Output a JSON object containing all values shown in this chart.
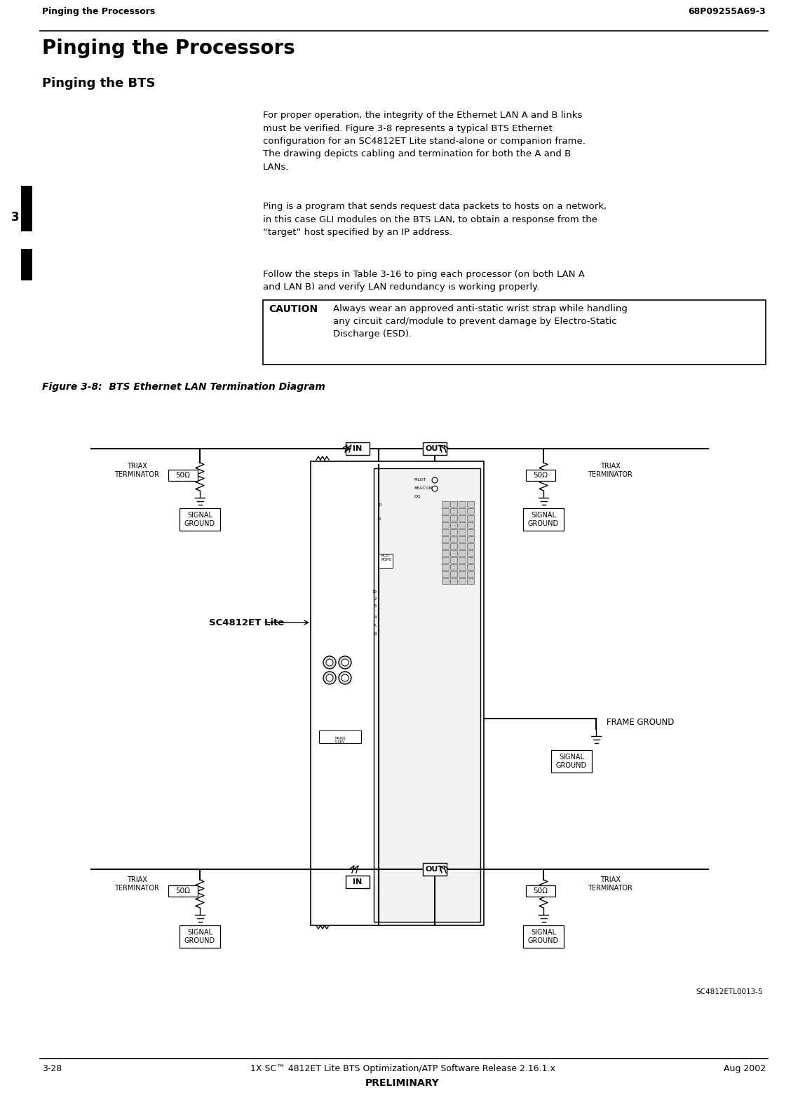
{
  "header_left": "Pinging the Processors",
  "header_right": "68P09255A69-3",
  "title_main": "Pinging the Processors",
  "subtitle": "Pinging the BTS",
  "para1": "For proper operation, the integrity of the Ethernet LAN A and B links\nmust be verified. Figure 3-8 represents a typical BTS Ethernet\nconfiguration for an SC4812ET Lite stand-alone or companion frame.\nThe drawing depicts cabling and termination for both the A and B\nLANs.",
  "para2": "Ping is a program that sends request data packets to hosts on a network,\nin this case GLI modules on the BTS LAN, to obtain a response from the\n“target” host specified by an IP address.",
  "para3": "Follow the steps in Table 3-16 to ping each processor (on both LAN A\nand LAN B) and verify LAN redundancy is working properly.",
  "caution_label": "CAUTION",
  "caution_text": "Always wear an approved anti-static wrist strap while handling\nany circuit card/module to prevent damage by Electro-Static\nDischarge (ESD).",
  "figure_caption": "Figure 3-8:  BTS Ethernet LAN Termination Diagram",
  "footer_left": "3-28",
  "footer_center": "1X SC™ 4812ET Lite BTS Optimization/ATP Software Release 2.16.1.x",
  "footer_center2": "PRELIMINARY",
  "footer_right": "Aug 2002",
  "watermark": "SC4812ETL0013-5",
  "chapter_num": "3",
  "bg_color": "#ffffff",
  "text_color": "#000000"
}
